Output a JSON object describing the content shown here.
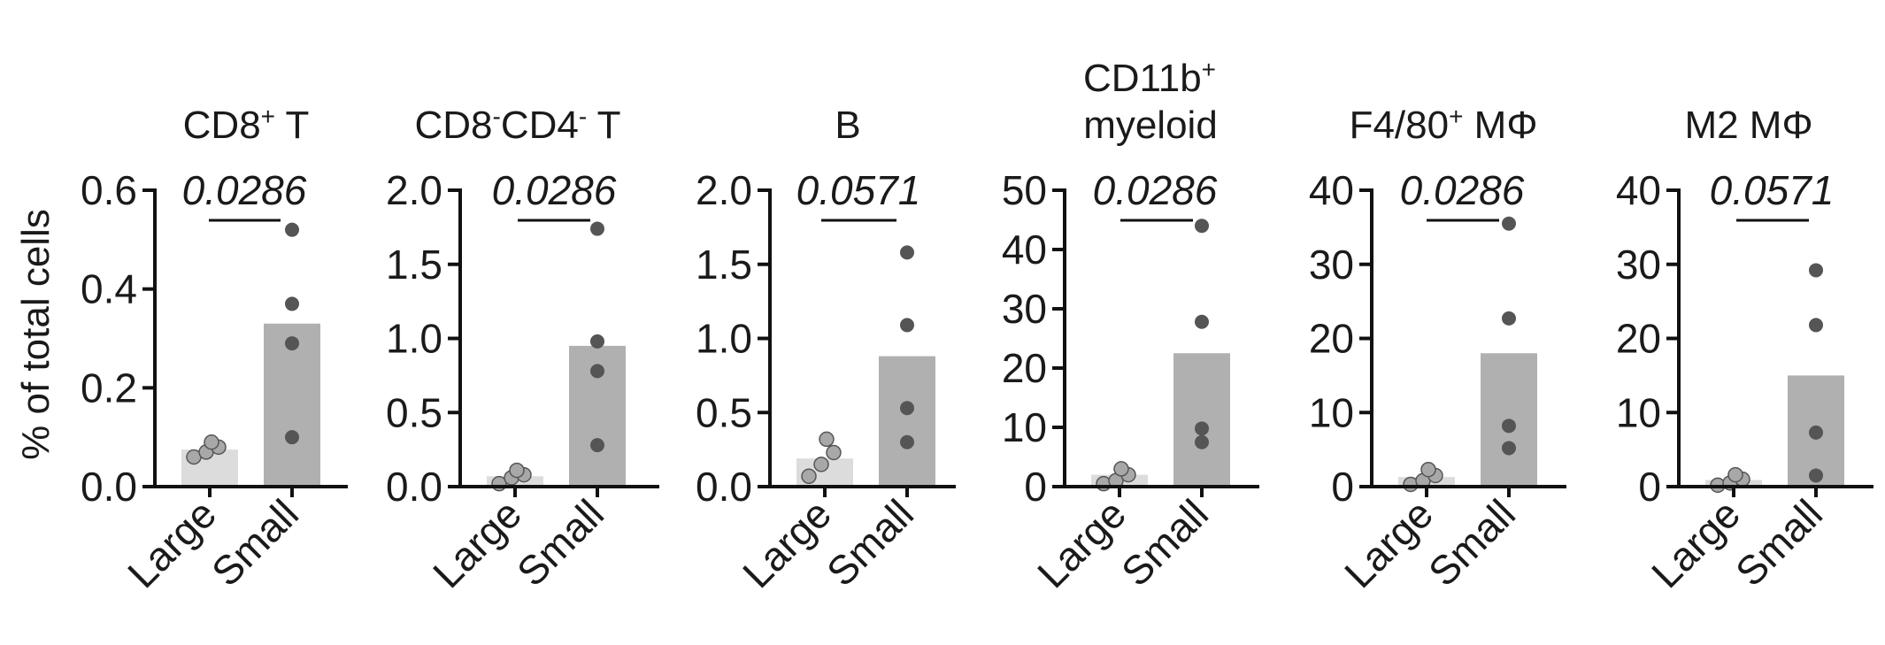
{
  "ylabel": "% of total cells",
  "colors": {
    "large_bar": "#dcdcdc",
    "small_bar": "#b0b0b0",
    "large_point": "#a8a8a8",
    "small_point": "#555555",
    "axis": "#111111"
  },
  "chart_data": [
    {
      "type": "bar",
      "title": {
        "main": "CD8",
        "sup1": "+",
        "rest": " T"
      },
      "pvalue": "0.0286",
      "categories": [
        "Large",
        "Small"
      ],
      "values": [
        0.075,
        0.33
      ],
      "points": [
        [
          0.06,
          0.07,
          0.08,
          0.09
        ],
        [
          0.1,
          0.29,
          0.37,
          0.52
        ]
      ],
      "ylim": [
        0,
        0.6
      ],
      "yticks": [
        "0.0",
        "0.2",
        "0.4",
        "0.6"
      ],
      "ytick_values": [
        0,
        0.2,
        0.4,
        0.6
      ]
    },
    {
      "type": "bar",
      "title": {
        "main": "CD8",
        "sup1": "-",
        "mid": "CD4",
        "sup2": "-",
        "rest": " T"
      },
      "pvalue": "0.0286",
      "categories": [
        "Large",
        "Small"
      ],
      "values": [
        0.07,
        0.95
      ],
      "points": [
        [
          0.02,
          0.06,
          0.08,
          0.11
        ],
        [
          0.28,
          0.78,
          0.98,
          1.74
        ]
      ],
      "ylim": [
        0,
        2.0
      ],
      "yticks": [
        "0.0",
        "0.5",
        "1.0",
        "1.5",
        "2.0"
      ],
      "ytick_values": [
        0,
        0.5,
        1.0,
        1.5,
        2.0
      ]
    },
    {
      "type": "bar",
      "title": {
        "main": "B"
      },
      "pvalue": "0.0571",
      "categories": [
        "Large",
        "Small"
      ],
      "values": [
        0.19,
        0.88
      ],
      "points": [
        [
          0.07,
          0.15,
          0.23,
          0.32
        ],
        [
          0.3,
          0.53,
          1.09,
          1.58
        ]
      ],
      "ylim": [
        0,
        2.0
      ],
      "yticks": [
        "0.0",
        "0.5",
        "1.0",
        "1.5",
        "2.0"
      ],
      "ytick_values": [
        0,
        0.5,
        1.0,
        1.5,
        2.0
      ]
    },
    {
      "type": "bar",
      "title": {
        "line1_main": "CD11b",
        "line1_sup": "+",
        "line2": "myeloid"
      },
      "pvalue": "0.0286",
      "categories": [
        "Large",
        "Small"
      ],
      "values": [
        2.0,
        22.5
      ],
      "points": [
        [
          0.5,
          1.0,
          2.0,
          3.0
        ],
        [
          7.5,
          9.8,
          27.8,
          44.0
        ]
      ],
      "ylim": [
        0,
        50
      ],
      "yticks": [
        "0",
        "10",
        "20",
        "30",
        "40",
        "50"
      ],
      "ytick_values": [
        0,
        10,
        20,
        30,
        40,
        50
      ]
    },
    {
      "type": "bar",
      "title": {
        "main": "F4/80",
        "sup1": "+",
        "rest": " MΦ"
      },
      "pvalue": "0.0286",
      "categories": [
        "Large",
        "Small"
      ],
      "values": [
        1.3,
        18.0
      ],
      "points": [
        [
          0.3,
          0.8,
          1.5,
          2.3
        ],
        [
          5.2,
          8.2,
          22.7,
          35.5
        ]
      ],
      "ylim": [
        0,
        40
      ],
      "yticks": [
        "0",
        "10",
        "20",
        "30",
        "40"
      ],
      "ytick_values": [
        0,
        10,
        20,
        30,
        40
      ]
    },
    {
      "type": "bar",
      "title": {
        "main": "M2 MΦ"
      },
      "pvalue": "0.0571",
      "categories": [
        "Large",
        "Small"
      ],
      "values": [
        0.9,
        15.0
      ],
      "points": [
        [
          0.2,
          0.5,
          1.0,
          1.6
        ],
        [
          1.5,
          7.3,
          21.8,
          29.2
        ]
      ],
      "ylim": [
        0,
        40
      ],
      "yticks": [
        "0",
        "10",
        "20",
        "30",
        "40"
      ],
      "ytick_values": [
        0,
        10,
        20,
        30,
        40
      ]
    }
  ]
}
